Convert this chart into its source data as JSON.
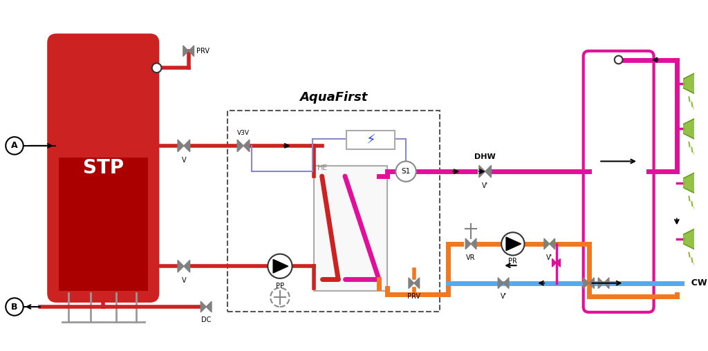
{
  "bg_color": "#ffffff",
  "pipe_red": "#cc2222",
  "pipe_magenta": "#e0109a",
  "pipe_orange": "#f07820",
  "pipe_blue": "#55aaee",
  "pipe_purple": "#8888cc",
  "pipe_lw": 4,
  "title": "AquaFirst",
  "label_A": "A",
  "label_B": "B",
  "label_STP": "STP",
  "label_DHW": "DHW",
  "label_CW": "CW",
  "label_PRV": "PRV",
  "label_PP": "PP",
  "label_HE": "HE",
  "label_S1": "S1",
  "label_V3V": "V3V",
  "label_VR": "VR",
  "label_PR": "PR",
  "label_DC": "DC",
  "label_V": "V",
  "label_Vp": "V'"
}
